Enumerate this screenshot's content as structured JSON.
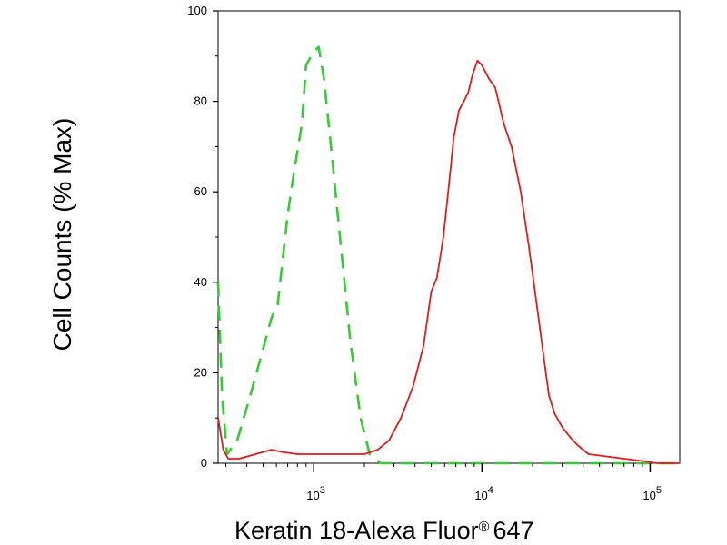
{
  "chart_data": {
    "type": "line",
    "xlabel": "Keratin 18-Alexa Fluor",
    "xlabel_mark": "®",
    "xlabel_suffix": "647",
    "ylabel": "Cell Counts (% Max)",
    "x_scale": "log",
    "xlim": [
      270,
      150000
    ],
    "ylim": [
      0,
      100
    ],
    "x_ticks": [
      {
        "value": 1000,
        "base": "10",
        "exp": "3"
      },
      {
        "value": 10000,
        "base": "10",
        "exp": "4"
      },
      {
        "value": 100000,
        "base": "10",
        "exp": "5"
      }
    ],
    "y_ticks": [
      0,
      20,
      40,
      60,
      80,
      100
    ],
    "grid": false,
    "colors": {
      "sample": "#e41a1c",
      "control": "#33cc33"
    },
    "series": [
      {
        "style": "dashed",
        "color": "#33cc33",
        "points": [
          [
            270,
            40
          ],
          [
            285,
            15
          ],
          [
            305,
            2
          ],
          [
            350,
            5
          ],
          [
            420,
            15
          ],
          [
            560,
            32
          ],
          [
            610,
            35
          ],
          [
            700,
            55
          ],
          [
            760,
            64
          ],
          [
            850,
            75
          ],
          [
            900,
            88
          ],
          [
            1000,
            91
          ],
          [
            1070,
            92
          ],
          [
            1150,
            85
          ],
          [
            1250,
            72
          ],
          [
            1450,
            48
          ],
          [
            1650,
            27
          ],
          [
            1900,
            10
          ],
          [
            2150,
            2
          ],
          [
            2500,
            0
          ],
          [
            3000,
            0
          ],
          [
            150000,
            0
          ]
        ]
      },
      {
        "style": "solid",
        "color": "#e41a1c",
        "points": [
          [
            270,
            10
          ],
          [
            290,
            3
          ],
          [
            310,
            1
          ],
          [
            360,
            1
          ],
          [
            450,
            2
          ],
          [
            560,
            3
          ],
          [
            650,
            2.5
          ],
          [
            800,
            2
          ],
          [
            1000,
            2
          ],
          [
            1500,
            2
          ],
          [
            2000,
            2
          ],
          [
            2400,
            3
          ],
          [
            2800,
            5
          ],
          [
            3300,
            10
          ],
          [
            3900,
            17
          ],
          [
            4500,
            26
          ],
          [
            5000,
            38
          ],
          [
            5400,
            41
          ],
          [
            5900,
            50
          ],
          [
            6300,
            60
          ],
          [
            6800,
            72
          ],
          [
            7300,
            78
          ],
          [
            7800,
            80
          ],
          [
            8300,
            82
          ],
          [
            8800,
            86
          ],
          [
            9400,
            89
          ],
          [
            10000,
            88
          ],
          [
            11000,
            85
          ],
          [
            12000,
            83
          ],
          [
            13500,
            75
          ],
          [
            15000,
            70
          ],
          [
            17000,
            60
          ],
          [
            19000,
            48
          ],
          [
            21000,
            36
          ],
          [
            23000,
            25
          ],
          [
            25000,
            15
          ],
          [
            27000,
            11
          ],
          [
            30000,
            8
          ],
          [
            33000,
            6
          ],
          [
            37000,
            4
          ],
          [
            43000,
            2
          ],
          [
            55000,
            1.5
          ],
          [
            70000,
            1
          ],
          [
            90000,
            0.5
          ],
          [
            110000,
            0
          ],
          [
            150000,
            0
          ]
        ]
      }
    ]
  }
}
